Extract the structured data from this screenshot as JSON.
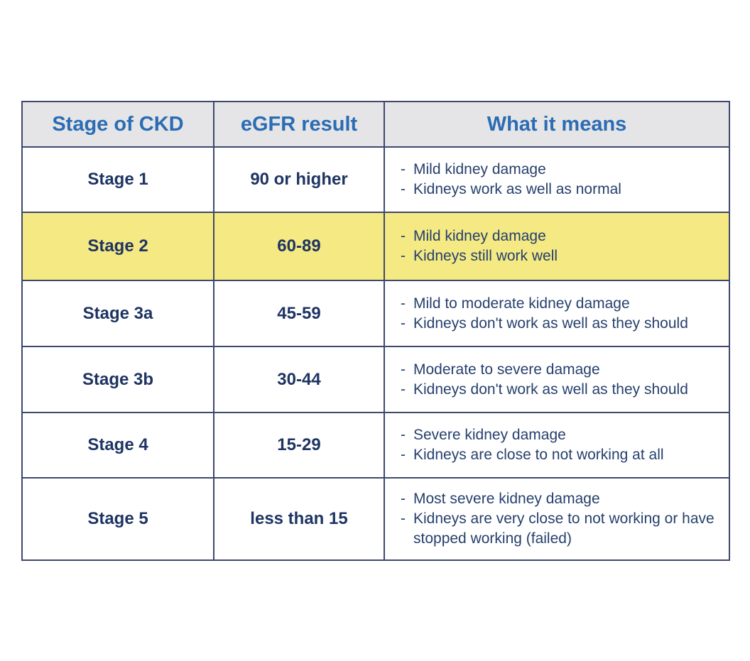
{
  "colors": {
    "border": "#3e486e",
    "header_background": "#e5e5e7",
    "header_text": "#2b6cb4",
    "body_text": "#1e3463",
    "description_text": "#26406d",
    "highlight_row": "#f5e983",
    "page_background": "#ffffff"
  },
  "table": {
    "bullet_char": "-",
    "headers": {
      "stage": "Stage of CKD",
      "egfr": "eGFR result",
      "meaning": "What it means"
    },
    "rows": [
      {
        "stage": "Stage 1",
        "egfr": "90 or higher",
        "highlighted": false,
        "meanings": [
          "Mild kidney damage",
          "Kidneys work as well as normal"
        ]
      },
      {
        "stage": "Stage 2",
        "egfr": "60-89",
        "highlighted": true,
        "meanings": [
          "Mild kidney damage",
          "Kidneys still work well"
        ]
      },
      {
        "stage": "Stage 3a",
        "egfr": "45-59",
        "highlighted": false,
        "meanings": [
          "Mild to moderate kidney damage",
          "Kidneys don't work as well as they should"
        ]
      },
      {
        "stage": "Stage 3b",
        "egfr": "30-44",
        "highlighted": false,
        "meanings": [
          "Moderate to severe damage",
          "Kidneys don't work as well as they should"
        ]
      },
      {
        "stage": "Stage 4",
        "egfr": "15-29",
        "highlighted": false,
        "meanings": [
          "Severe kidney damage",
          "Kidneys are close to not working at all"
        ]
      },
      {
        "stage": "Stage 5",
        "egfr": "less than 15",
        "highlighted": false,
        "meanings": [
          "Most severe kidney damage",
          "Kidneys are very close to not working or have stopped working (failed)"
        ]
      }
    ]
  }
}
